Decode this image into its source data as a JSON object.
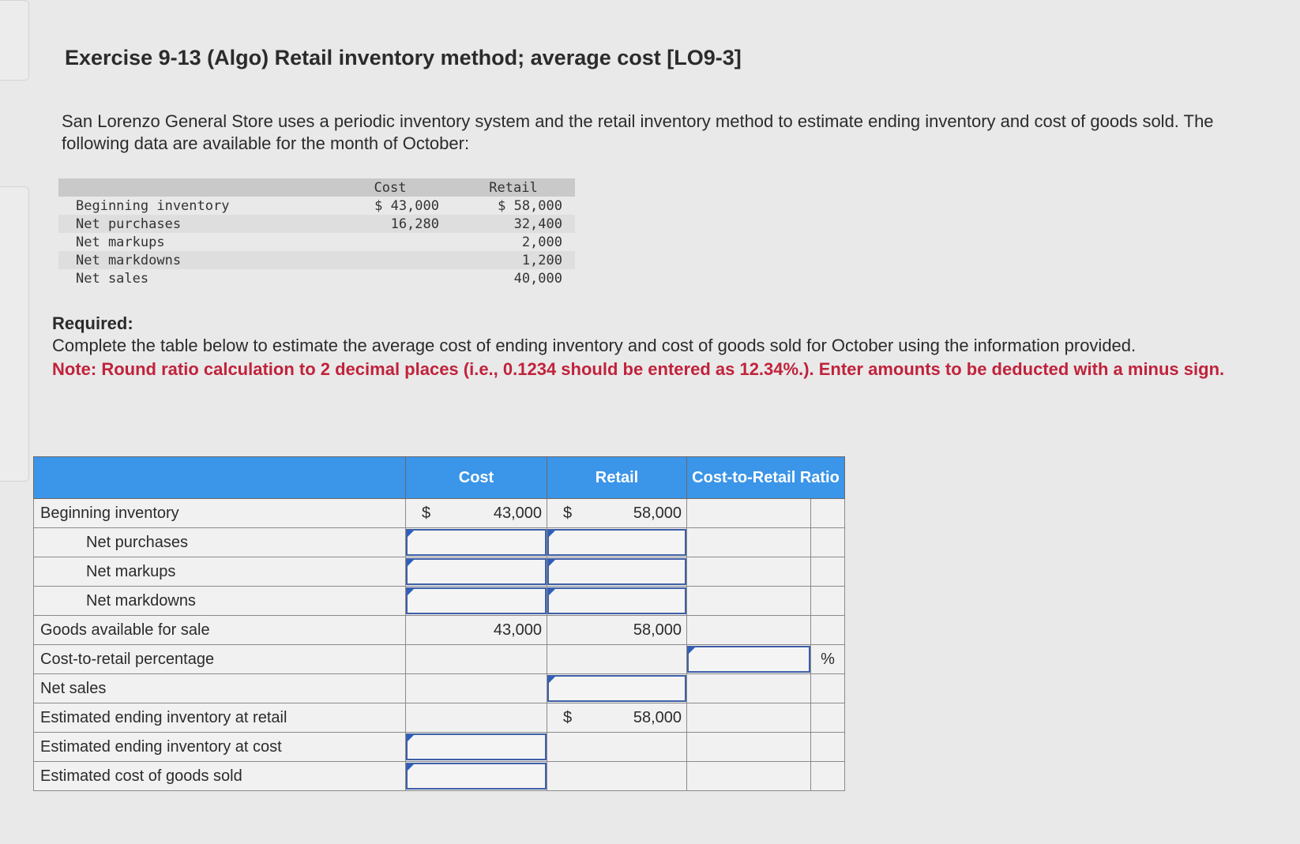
{
  "title": "Exercise 9-13 (Algo) Retail inventory method; average cost [LO9-3]",
  "intro": "San Lorenzo General Store uses a periodic inventory system and the retail inventory method to estimate ending inventory and cost of goods sold. The following data are available for the month of October:",
  "given": {
    "headers": {
      "cost": "Cost",
      "retail": "Retail"
    },
    "rows": [
      {
        "label": "Beginning inventory",
        "cost": "$ 43,000",
        "retail": "$ 58,000"
      },
      {
        "label": "Net purchases",
        "cost": "16,280",
        "retail": "32,400"
      },
      {
        "label": "Net markups",
        "cost": "",
        "retail": "2,000"
      },
      {
        "label": "Net markdowns",
        "cost": "",
        "retail": "1,200"
      },
      {
        "label": "Net sales",
        "cost": "",
        "retail": "40,000"
      }
    ]
  },
  "required": {
    "heading": "Required:",
    "text": "Complete the table below to estimate the average cost of ending inventory and cost of goods sold for October using the information provided.",
    "note": "Note: Round ratio calculation to 2 decimal places (i.e., 0.1234 should be entered as 12.34%.). Enter amounts to be deducted with a minus sign."
  },
  "work": {
    "headers": {
      "cost": "Cost",
      "retail": "Retail",
      "ratio": "Cost-to-Retail Ratio"
    },
    "currency": "$",
    "percent": "%",
    "rows": {
      "beginning": {
        "label": "Beginning inventory",
        "cost": "43,000",
        "retail": "58,000"
      },
      "purchases": {
        "label": "Net purchases"
      },
      "markups": {
        "label": "Net markups"
      },
      "markdowns": {
        "label": "Net markdowns"
      },
      "available": {
        "label": "Goods available for sale",
        "cost": "43,000",
        "retail": "58,000"
      },
      "percentage": {
        "label": "Cost-to-retail percentage"
      },
      "sales": {
        "label": "Net sales"
      },
      "ending_retail": {
        "label": "Estimated ending inventory at retail",
        "retail": "58,000"
      },
      "ending_cost": {
        "label": "Estimated ending inventory at cost"
      },
      "cogs": {
        "label": "Estimated cost of goods sold"
      }
    }
  }
}
